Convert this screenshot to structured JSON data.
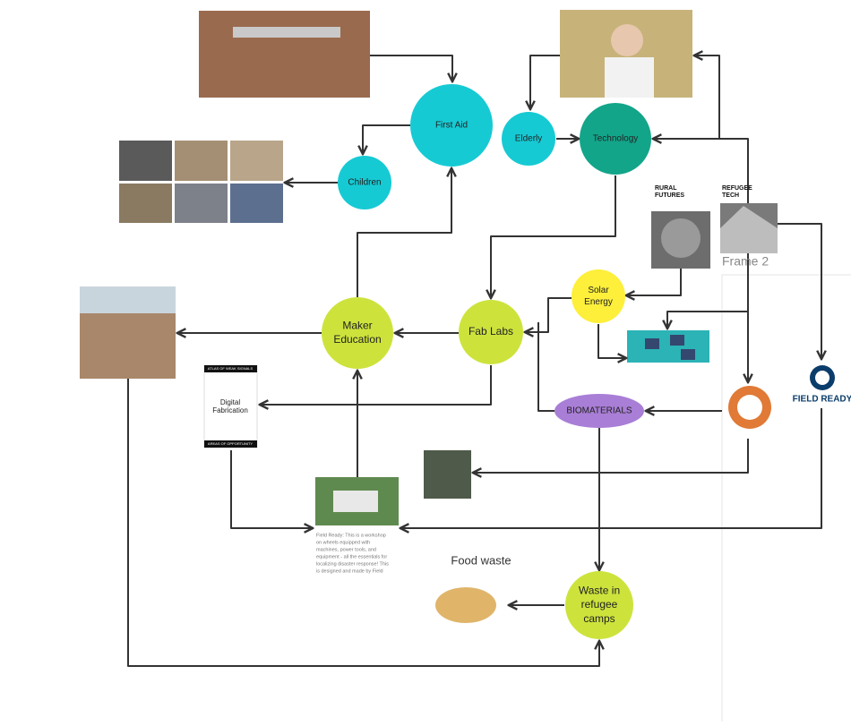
{
  "nodes": [
    {
      "lines": [
        "First Aid"
      ]
    },
    {
      "lines": [
        "Elderly"
      ]
    },
    {
      "lines": [
        "Technology"
      ]
    },
    {
      "lines": [
        "Children"
      ]
    },
    {
      "lines": [
        "Maker",
        "Education"
      ]
    },
    {
      "lines": [
        "Fab Labs"
      ]
    },
    {
      "lines": [
        "Solar",
        "Energy"
      ]
    },
    {
      "lines": [
        "BIOMATERIALS"
      ]
    },
    {
      "lines": [
        "Waste in",
        "refugee",
        "camps"
      ]
    }
  ],
  "labels": {
    "food_waste": "Food waste",
    "rural_futures": [
      "RURAL",
      "FUTURES"
    ],
    "refugee_tech": [
      "REFUGEE",
      "TECH"
    ],
    "frame": "Frame 2",
    "field_ready": "FIELD READY",
    "atlas": "ATLAS OF WEAK SIGNALS",
    "digital_fabrication": [
      "Digital",
      "Fabrication"
    ],
    "areas": "AREAS OF OPPORTUNITY"
  },
  "caption": [
    "Field Ready: This is a workshop",
    "on wheels equipped with",
    "machines, power tools, and",
    "equipment - all the essentials for",
    "localizing disaster response! This",
    "is designed and made by Field"
  ]
}
